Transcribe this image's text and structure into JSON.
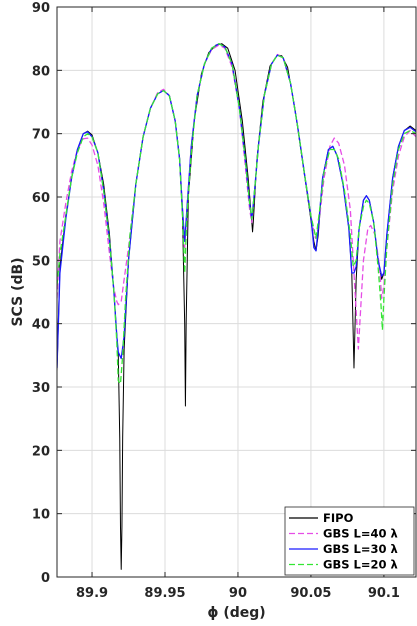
{
  "chart_data": {
    "type": "line",
    "xlabel": "ϕ (deg)",
    "ylabel": "SCS (dB)",
    "xlim": [
      89.876,
      90.122
    ],
    "ylim": [
      0,
      90
    ],
    "xticks": [
      89.9,
      89.95,
      90,
      90.05,
      90.1
    ],
    "xtick_labels": [
      "89.9",
      "89.95",
      "90",
      "90.05",
      "90.1"
    ],
    "yticks": [
      0,
      10,
      20,
      30,
      40,
      50,
      60,
      70,
      80,
      90
    ],
    "ytick_labels": [
      "0",
      "10",
      "20",
      "30",
      "40",
      "50",
      "60",
      "70",
      "80",
      "90"
    ],
    "grid": true,
    "legend_position": "bottom-right",
    "series": [
      {
        "name": "FIPO",
        "color": "#000000",
        "dash": "solid",
        "points": [
          [
            89.876,
            32.5
          ],
          [
            89.878,
            49
          ],
          [
            89.882,
            57
          ],
          [
            89.886,
            63
          ],
          [
            89.89,
            67.5
          ],
          [
            89.894,
            70
          ],
          [
            89.897,
            70.4
          ],
          [
            89.9,
            69.8
          ],
          [
            89.904,
            67
          ],
          [
            89.908,
            62
          ],
          [
            89.912,
            54
          ],
          [
            89.915,
            45
          ],
          [
            89.917,
            38
          ],
          [
            89.918,
            35
          ],
          [
            89.919,
            22
          ],
          [
            89.9195,
            8
          ],
          [
            89.92,
            1.2
          ],
          [
            89.9205,
            8
          ],
          [
            89.921,
            22
          ],
          [
            89.922,
            36
          ],
          [
            89.925,
            50
          ],
          [
            89.93,
            62
          ],
          [
            89.935,
            69.5
          ],
          [
            89.94,
            74
          ],
          [
            89.945,
            76.3
          ],
          [
            89.949,
            76.8
          ],
          [
            89.953,
            76
          ],
          [
            89.957,
            72
          ],
          [
            89.96,
            66
          ],
          [
            89.962,
            57
          ],
          [
            89.9635,
            40
          ],
          [
            89.964,
            27
          ],
          [
            89.9645,
            40
          ],
          [
            89.966,
            60
          ],
          [
            89.97,
            72
          ],
          [
            89.975,
            79.5
          ],
          [
            89.98,
            82.8
          ],
          [
            89.985,
            84
          ],
          [
            89.989,
            84.2
          ],
          [
            89.993,
            83.5
          ],
          [
            89.998,
            80
          ],
          [
            90.003,
            72
          ],
          [
            90.007,
            63
          ],
          [
            90.0095,
            56
          ],
          [
            90.01,
            54.5
          ],
          [
            90.0105,
            56
          ],
          [
            90.013,
            66
          ],
          [
            90.017,
            75
          ],
          [
            90.022,
            80.7
          ],
          [
            90.027,
            82.4
          ],
          [
            90.03,
            82.3
          ],
          [
            90.034,
            80.5
          ],
          [
            90.039,
            74
          ],
          [
            90.044,
            66
          ],
          [
            90.049,
            58
          ],
          [
            90.052,
            53
          ],
          [
            90.0535,
            51.5
          ],
          [
            90.055,
            54
          ],
          [
            90.058,
            63
          ],
          [
            90.062,
            67.5
          ],
          [
            90.065,
            68
          ],
          [
            90.068,
            66.5
          ],
          [
            90.072,
            62
          ],
          [
            90.076,
            55
          ],
          [
            90.078,
            48
          ],
          [
            90.0795,
            33
          ],
          [
            90.081,
            47
          ],
          [
            90.083,
            55
          ],
          [
            90.086,
            59.5
          ],
          [
            90.088,
            60.2
          ],
          [
            90.09,
            59.5
          ],
          [
            90.093,
            56
          ],
          [
            90.096,
            50
          ],
          [
            90.0985,
            47
          ],
          [
            90.1,
            48
          ],
          [
            90.102,
            54
          ],
          [
            90.106,
            63
          ],
          [
            90.11,
            68
          ],
          [
            90.114,
            70.5
          ],
          [
            90.118,
            71.2
          ],
          [
            90.122,
            70.5
          ]
        ]
      },
      {
        "name": "GBS L=40 λ",
        "color": "#e64de6",
        "dash": "dashed",
        "points": [
          [
            89.876,
            44
          ],
          [
            89.878,
            53
          ],
          [
            89.882,
            59
          ],
          [
            89.886,
            64
          ],
          [
            89.89,
            67.5
          ],
          [
            89.894,
            69.2
          ],
          [
            89.897,
            69.3
          ],
          [
            89.9,
            68.2
          ],
          [
            89.904,
            65
          ],
          [
            89.908,
            59
          ],
          [
            89.912,
            51
          ],
          [
            89.915,
            45.5
          ],
          [
            89.917,
            43.5
          ],
          [
            89.918,
            43
          ],
          [
            89.92,
            43.5
          ],
          [
            89.922,
            47
          ],
          [
            89.925,
            52
          ],
          [
            89.93,
            62
          ],
          [
            89.935,
            69.5
          ],
          [
            89.94,
            74
          ],
          [
            89.945,
            76.5
          ],
          [
            89.949,
            77
          ],
          [
            89.953,
            76
          ],
          [
            89.957,
            72
          ],
          [
            89.96,
            66
          ],
          [
            89.962,
            58
          ],
          [
            89.9635,
            52
          ],
          [
            89.965,
            58
          ],
          [
            89.968,
            68
          ],
          [
            89.972,
            76
          ],
          [
            89.977,
            81
          ],
          [
            89.982,
            83.3
          ],
          [
            89.987,
            84
          ],
          [
            89.991,
            83.5
          ],
          [
            89.996,
            80.5
          ],
          [
            90.001,
            74
          ],
          [
            90.005,
            65
          ],
          [
            90.008,
            58
          ],
          [
            90.0095,
            56
          ],
          [
            90.011,
            60
          ],
          [
            90.014,
            68
          ],
          [
            90.018,
            76
          ],
          [
            90.023,
            81
          ],
          [
            90.027,
            82.5
          ],
          [
            90.031,
            82
          ],
          [
            90.036,
            78
          ],
          [
            90.041,
            71
          ],
          [
            90.046,
            63
          ],
          [
            90.05,
            57
          ],
          [
            90.053,
            53.5
          ],
          [
            90.055,
            55
          ],
          [
            90.059,
            63
          ],
          [
            90.063,
            68
          ],
          [
            90.066,
            69.3
          ],
          [
            90.069,
            68.5
          ],
          [
            90.073,
            65
          ],
          [
            90.077,
            58
          ],
          [
            90.079,
            50
          ],
          [
            90.081,
            42
          ],
          [
            90.0825,
            36
          ],
          [
            90.084,
            42
          ],
          [
            90.086,
            50
          ],
          [
            90.089,
            55
          ],
          [
            90.091,
            55.5
          ],
          [
            90.094,
            54
          ],
          [
            90.097,
            49
          ],
          [
            90.0985,
            44
          ],
          [
            90.1,
            46
          ],
          [
            90.102,
            52
          ],
          [
            90.106,
            61
          ],
          [
            90.11,
            66.5
          ],
          [
            90.114,
            69.5
          ],
          [
            90.118,
            70.5
          ],
          [
            90.122,
            69.5
          ]
        ]
      },
      {
        "name": "GBS L=30 λ",
        "color": "#1a1aff",
        "dash": "solid",
        "points": [
          [
            89.876,
            33
          ],
          [
            89.878,
            48
          ],
          [
            89.882,
            56.5
          ],
          [
            89.886,
            63
          ],
          [
            89.89,
            67.5
          ],
          [
            89.894,
            70
          ],
          [
            89.897,
            70.3
          ],
          [
            89.9,
            69.5
          ],
          [
            89.904,
            67
          ],
          [
            89.908,
            61
          ],
          [
            89.912,
            53
          ],
          [
            89.915,
            45
          ],
          [
            89.917,
            38
          ],
          [
            89.918,
            35.5
          ],
          [
            89.92,
            34.5
          ],
          [
            89.922,
            38
          ],
          [
            89.925,
            50
          ],
          [
            89.93,
            62
          ],
          [
            89.935,
            69.5
          ],
          [
            89.94,
            74
          ],
          [
            89.945,
            76.3
          ],
          [
            89.949,
            76.8
          ],
          [
            89.953,
            76
          ],
          [
            89.957,
            72
          ],
          [
            89.96,
            66
          ],
          [
            89.962,
            58
          ],
          [
            89.9635,
            53
          ],
          [
            89.965,
            58
          ],
          [
            89.968,
            68
          ],
          [
            89.972,
            76
          ],
          [
            89.977,
            81
          ],
          [
            89.982,
            83.5
          ],
          [
            89.987,
            84.2
          ],
          [
            89.991,
            83.7
          ],
          [
            89.996,
            81
          ],
          [
            90.001,
            74
          ],
          [
            90.005,
            66
          ],
          [
            90.008,
            59
          ],
          [
            90.0095,
            56.5
          ],
          [
            90.011,
            60
          ],
          [
            90.014,
            68
          ],
          [
            90.018,
            76
          ],
          [
            90.023,
            81
          ],
          [
            90.027,
            82.4
          ],
          [
            90.031,
            82
          ],
          [
            90.036,
            78
          ],
          [
            90.041,
            71
          ],
          [
            90.046,
            63
          ],
          [
            90.05,
            57
          ],
          [
            90.052,
            52
          ],
          [
            90.0535,
            51.5
          ],
          [
            90.055,
            55
          ],
          [
            90.058,
            63
          ],
          [
            90.062,
            67.5
          ],
          [
            90.065,
            68
          ],
          [
            90.068,
            66.5
          ],
          [
            90.072,
            62
          ],
          [
            90.076,
            55
          ],
          [
            90.078,
            48
          ],
          [
            90.0795,
            48
          ],
          [
            90.081,
            49
          ],
          [
            90.083,
            55
          ],
          [
            90.086,
            59.5
          ],
          [
            90.088,
            60.2
          ],
          [
            90.09,
            59.5
          ],
          [
            90.093,
            56
          ],
          [
            90.096,
            50
          ],
          [
            90.0985,
            47.5
          ],
          [
            90.1,
            48
          ],
          [
            90.102,
            54
          ],
          [
            90.106,
            63
          ],
          [
            90.11,
            68
          ],
          [
            90.114,
            70.5
          ],
          [
            90.118,
            71
          ],
          [
            90.122,
            70.3
          ]
        ]
      },
      {
        "name": "GBS L=20 λ",
        "color": "#33e633",
        "dash": "dashed",
        "points": [
          [
            89.876,
            46
          ],
          [
            89.878,
            51
          ],
          [
            89.882,
            57
          ],
          [
            89.886,
            63
          ],
          [
            89.89,
            67
          ],
          [
            89.894,
            69.5
          ],
          [
            89.897,
            70
          ],
          [
            89.9,
            69.5
          ],
          [
            89.904,
            67
          ],
          [
            89.908,
            61
          ],
          [
            89.912,
            53
          ],
          [
            89.915,
            45
          ],
          [
            89.917,
            37
          ],
          [
            89.918,
            31
          ],
          [
            89.9195,
            30.5
          ],
          [
            89.921,
            35
          ],
          [
            89.923,
            44
          ],
          [
            89.926,
            54
          ],
          [
            89.93,
            62
          ],
          [
            89.935,
            69.5
          ],
          [
            89.94,
            74
          ],
          [
            89.945,
            76.3
          ],
          [
            89.949,
            76.8
          ],
          [
            89.953,
            76
          ],
          [
            89.957,
            72
          ],
          [
            89.96,
            66
          ],
          [
            89.962,
            57
          ],
          [
            89.9635,
            48
          ],
          [
            89.965,
            57
          ],
          [
            89.968,
            67
          ],
          [
            89.972,
            76
          ],
          [
            89.977,
            81
          ],
          [
            89.982,
            83.5
          ],
          [
            89.987,
            84.2
          ],
          [
            89.991,
            83.7
          ],
          [
            89.996,
            81
          ],
          [
            90.001,
            74
          ],
          [
            90.005,
            66
          ],
          [
            90.008,
            59
          ],
          [
            90.0095,
            56.5
          ],
          [
            90.011,
            60
          ],
          [
            90.014,
            68
          ],
          [
            90.018,
            76
          ],
          [
            90.023,
            81
          ],
          [
            90.027,
            82.4
          ],
          [
            90.031,
            82
          ],
          [
            90.036,
            78
          ],
          [
            90.041,
            71
          ],
          [
            90.046,
            63
          ],
          [
            90.05,
            57
          ],
          [
            90.0535,
            53.5
          ],
          [
            90.056,
            58
          ],
          [
            90.059,
            64
          ],
          [
            90.063,
            67.5
          ],
          [
            90.066,
            67.5
          ],
          [
            90.069,
            66
          ],
          [
            90.073,
            61
          ],
          [
            90.077,
            54
          ],
          [
            90.079,
            49
          ],
          [
            90.081,
            50
          ],
          [
            90.083,
            55
          ],
          [
            90.086,
            58.5
          ],
          [
            90.088,
            59.5
          ],
          [
            90.09,
            59
          ],
          [
            90.093,
            56
          ],
          [
            90.096,
            49
          ],
          [
            90.098,
            43
          ],
          [
            90.099,
            39
          ],
          [
            90.1,
            44
          ],
          [
            90.102,
            52
          ],
          [
            90.106,
            62
          ],
          [
            90.11,
            67.5
          ],
          [
            90.114,
            70
          ],
          [
            90.118,
            70.5
          ],
          [
            90.122,
            70
          ]
        ]
      }
    ]
  }
}
